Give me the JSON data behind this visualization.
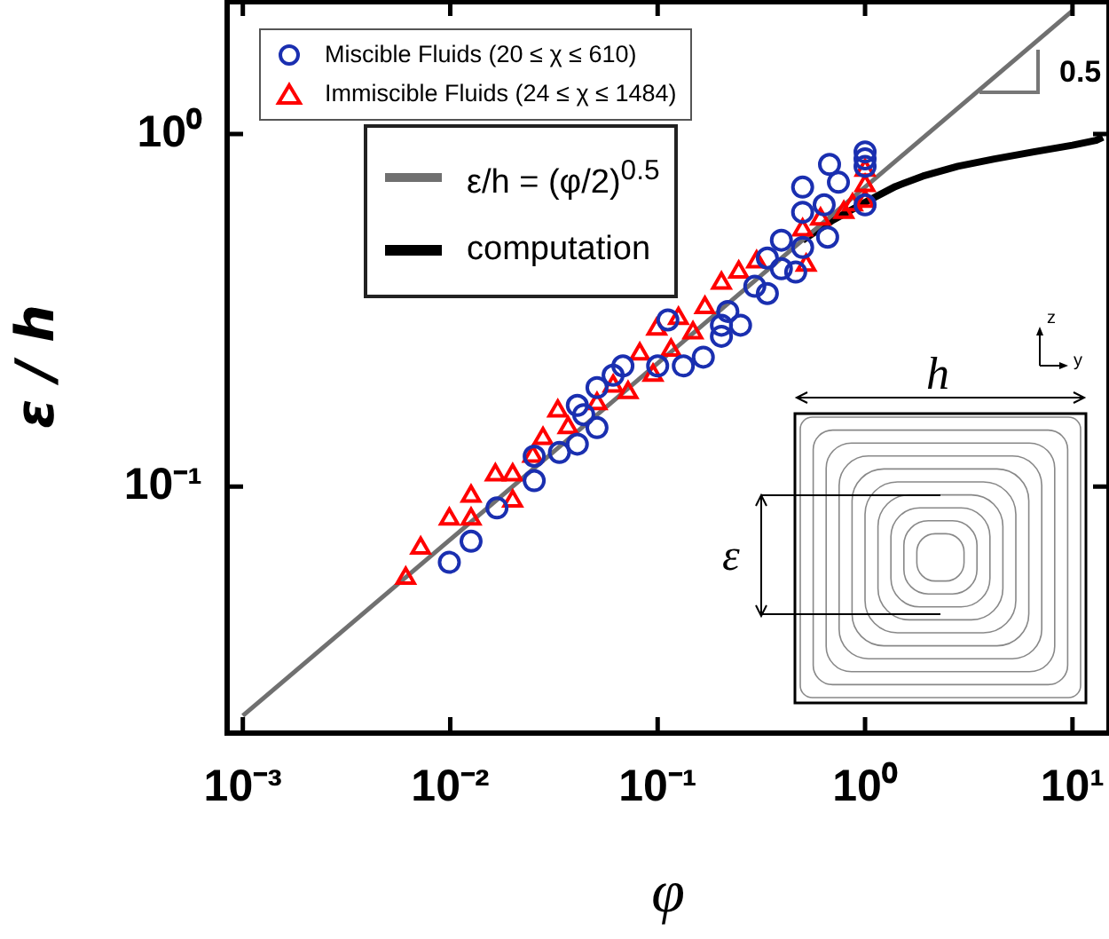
{
  "chart_data": {
    "type": "scatter",
    "xlabel": "φ",
    "ylabel": "ε / h",
    "log": "xy",
    "grid": false,
    "legend": "top left",
    "xlim": [
      0.00084,
      15
    ],
    "ylim": [
      0.02,
      2.4
    ],
    "xticks": [
      {
        "value": 0.001,
        "label": "10⁻³"
      },
      {
        "value": 0.01,
        "label": "10⁻²"
      },
      {
        "value": 0.1,
        "label": "10⁻¹"
      },
      {
        "value": 1,
        "label": "10⁰"
      },
      {
        "value": 10,
        "label": "10¹"
      }
    ],
    "yticks": [
      {
        "value": 0.1,
        "label": "10⁻¹"
      },
      {
        "value": 1,
        "label": "10⁰"
      }
    ],
    "annotations": [
      "0.5",
      "h",
      "ε",
      "z",
      "y"
    ],
    "series": [
      {
        "name": "Miscible Fluids (20 ≤ χ ≤ 610)",
        "type": "scatter",
        "marker": "circle",
        "color": "#1a2fb0",
        "x": [
          0.0099,
          0.0126,
          0.0168,
          0.0254,
          0.0254,
          0.0336,
          0.041,
          0.041,
          0.044,
          0.051,
          0.051,
          0.061,
          0.068,
          0.1,
          0.112,
          0.133,
          0.166,
          0.203,
          0.203,
          0.218,
          0.251,
          0.294,
          0.338,
          0.338,
          0.395,
          0.395,
          0.463,
          0.5,
          0.5,
          0.5,
          0.66,
          0.635,
          0.674,
          0.744,
          1.0,
          1.0,
          1.0,
          1.0
        ],
        "values": [
          0.061,
          0.07,
          0.087,
          0.104,
          0.122,
          0.125,
          0.132,
          0.17,
          0.16,
          0.147,
          0.191,
          0.207,
          0.22,
          0.22,
          0.297,
          0.22,
          0.233,
          0.267,
          0.287,
          0.314,
          0.287,
          0.37,
          0.353,
          0.445,
          0.415,
          0.5,
          0.406,
          0.477,
          0.6,
          0.707,
          0.51,
          0.63,
          0.82,
          0.73,
          0.63,
          0.81,
          0.89,
          0.85
        ]
      },
      {
        "name": "Immiscible Fluids (24 ≤ χ ≤ 1484)",
        "type": "scatter",
        "marker": "triangle",
        "color": "#ff0000",
        "x": [
          0.0061,
          0.0072,
          0.0099,
          0.0126,
          0.0126,
          0.0165,
          0.02,
          0.02,
          0.025,
          0.028,
          0.033,
          0.037,
          0.051,
          0.061,
          0.072,
          0.082,
          0.095,
          0.099,
          0.116,
          0.126,
          0.148,
          0.169,
          0.203,
          0.246,
          0.3,
          0.52,
          0.5,
          0.61,
          0.79,
          0.87,
          1.0,
          1.0,
          1.0
        ],
        "values": [
          0.055,
          0.067,
          0.081,
          0.081,
          0.094,
          0.108,
          0.108,
          0.091,
          0.122,
          0.137,
          0.164,
          0.147,
          0.172,
          0.193,
          0.185,
          0.238,
          0.207,
          0.28,
          0.244,
          0.3,
          0.273,
          0.322,
          0.378,
          0.406,
          0.434,
          0.425,
          0.535,
          0.574,
          0.6,
          0.63,
          0.715,
          0.79,
          0.645
        ]
      },
      {
        "name": "ε/h = (φ/2)$^{0.5}$",
        "type": "line",
        "marker": "none",
        "line_style": "solid",
        "color": "#707070",
        "x": [
          0.001,
          10
        ],
        "values": [
          0.0224,
          2.236
        ]
      },
      {
        "name": "computation",
        "type": "line",
        "marker": "none",
        "line_style": "solid",
        "color": "#000000",
        "x": [
          0.5,
          0.7,
          1.0,
          1.4,
          1.9,
          2.8,
          4.2,
          6.5,
          10,
          13,
          14
        ],
        "values": [
          0.5,
          0.57,
          0.64,
          0.71,
          0.76,
          0.81,
          0.85,
          0.89,
          0.93,
          0.96,
          0.98
        ]
      }
    ]
  }
}
